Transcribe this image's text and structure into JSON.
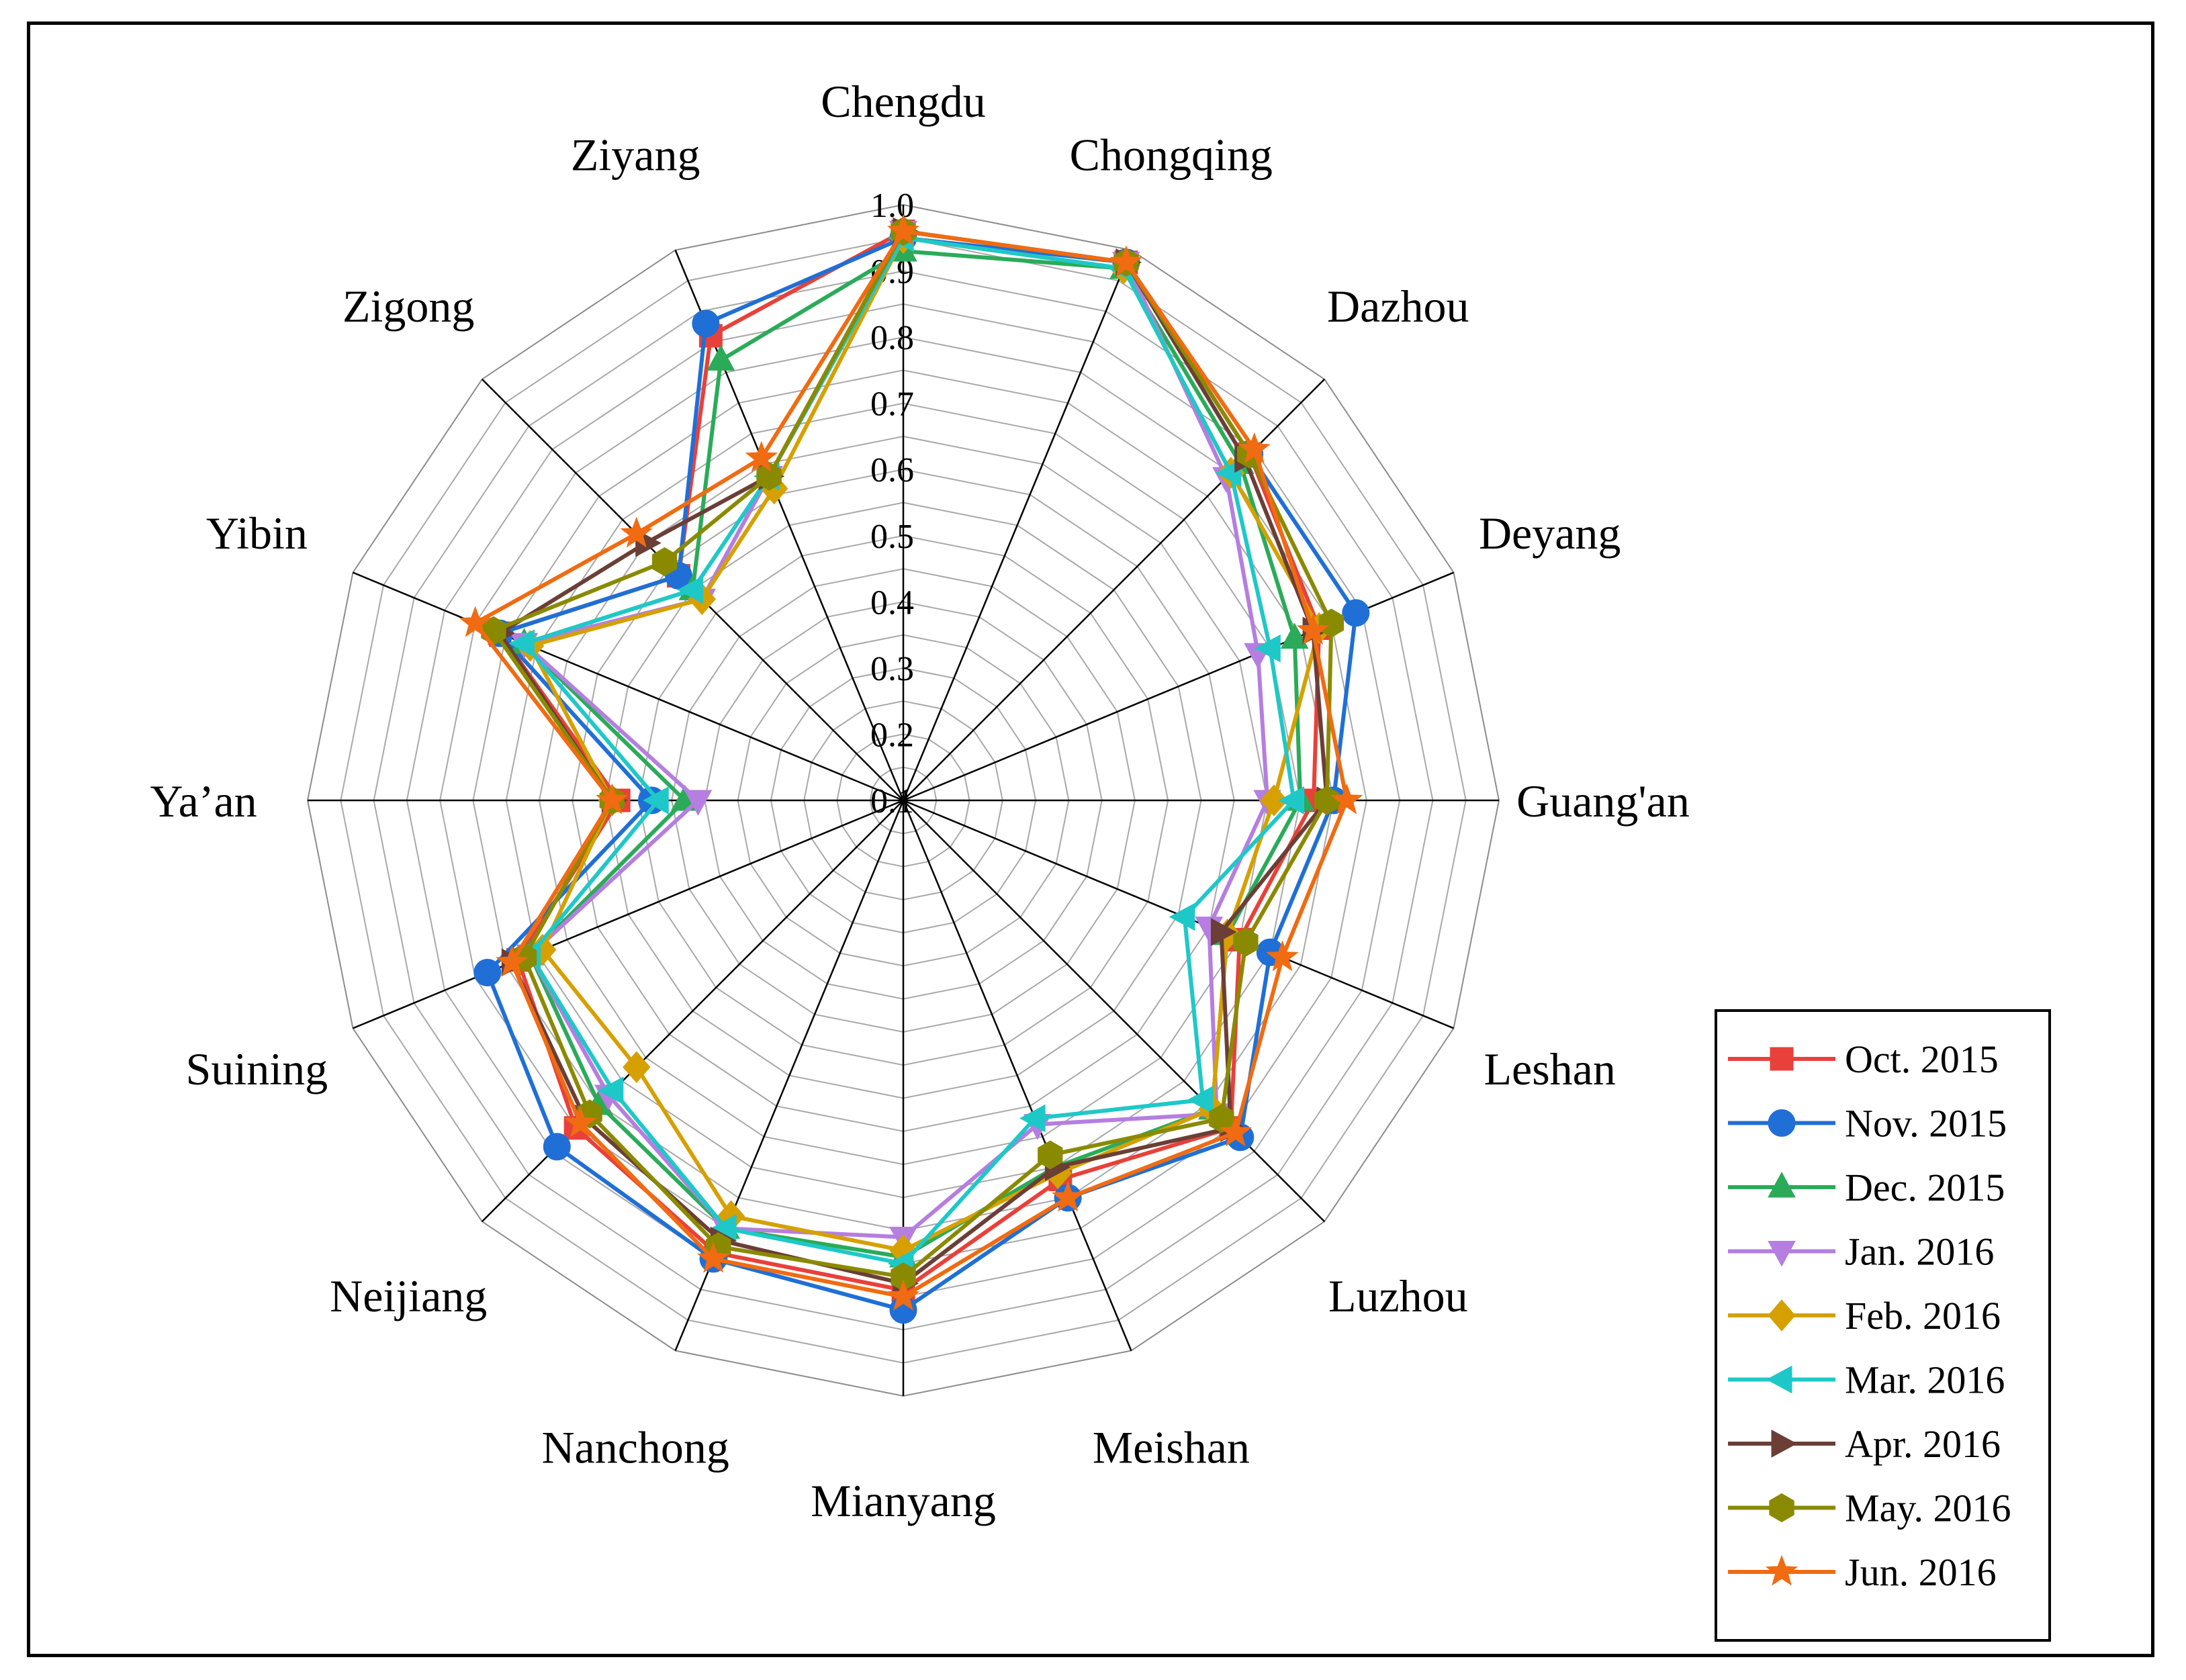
{
  "chart_data": {
    "type": "radar",
    "title": "",
    "categories": [
      "Chengdu",
      "Chongqing",
      "Dazhou",
      "Deyang",
      "Guang'an",
      "Leshan",
      "Luzhou",
      "Meishan",
      "Mianyang",
      "Nanchong",
      "Neijiang",
      "Suining",
      "Ya’an",
      "Yibin",
      "Zigong",
      "Ziyang"
    ],
    "rlim": [
      0.1,
      1.0
    ],
    "ticks": [
      "0.1",
      "0.2",
      "0.3",
      "0.4",
      "0.5",
      "0.6",
      "0.7",
      "0.8",
      "0.9",
      "1.0"
    ],
    "grid": true,
    "legend_position": "bottom-right",
    "series": [
      {
        "name": "Oct. 2015",
        "color": "#e8413a",
        "marker": "square",
        "values": [
          0.96,
          0.98,
          0.84,
          0.78,
          0.72,
          0.65,
          0.8,
          0.72,
          0.84,
          0.84,
          0.8,
          0.73,
          0.53,
          0.76,
          0.58,
          0.86
        ]
      },
      {
        "name": "Nov. 2015",
        "color": "#1f6fd6",
        "marker": "circle",
        "values": [
          0.95,
          0.98,
          0.84,
          0.84,
          0.75,
          0.7,
          0.82,
          0.75,
          0.87,
          0.85,
          0.84,
          0.78,
          0.48,
          0.76,
          0.58,
          0.88
        ]
      },
      {
        "name": "Dec. 2015",
        "color": "#2bab59",
        "marker": "triangle-up",
        "values": [
          0.93,
          0.97,
          0.82,
          0.74,
          0.7,
          0.63,
          0.76,
          0.7,
          0.79,
          0.8,
          0.75,
          0.71,
          0.43,
          0.72,
          0.55,
          0.82
        ]
      },
      {
        "name": "Jan. 2016",
        "color": "#b57ee0",
        "marker": "triangle-down",
        "values": [
          0.96,
          0.98,
          0.79,
          0.68,
          0.65,
          0.6,
          0.77,
          0.63,
          0.76,
          0.8,
          0.73,
          0.71,
          0.41,
          0.72,
          0.53,
          0.63
        ]
      },
      {
        "name": "Feb. 2016",
        "color": "#d6a000",
        "marker": "diamond",
        "values": [
          0.95,
          0.97,
          0.8,
          0.78,
          0.66,
          0.63,
          0.76,
          0.71,
          0.78,
          0.78,
          0.67,
          0.69,
          0.54,
          0.71,
          0.53,
          0.61
        ]
      },
      {
        "name": "Mar. 2016",
        "color": "#1fc8c8",
        "marker": "triangle-left",
        "values": [
          0.95,
          0.97,
          0.8,
          0.7,
          0.69,
          0.56,
          0.74,
          0.62,
          0.8,
          0.8,
          0.72,
          0.71,
          0.47,
          0.72,
          0.55,
          0.63
        ]
      },
      {
        "name": "Apr. 2016",
        "color": "#6b3e36",
        "marker": "triangle-right",
        "values": [
          0.96,
          0.98,
          0.83,
          0.77,
          0.74,
          0.62,
          0.8,
          0.7,
          0.83,
          0.82,
          0.78,
          0.74,
          0.54,
          0.76,
          0.65,
          0.63
        ]
      },
      {
        "name": "May. 2016",
        "color": "#8a8a00",
        "marker": "hexagon",
        "values": [
          0.96,
          0.98,
          0.84,
          0.8,
          0.74,
          0.66,
          0.78,
          0.68,
          0.82,
          0.83,
          0.77,
          0.72,
          0.54,
          0.77,
          0.61,
          0.63
        ]
      },
      {
        "name": "Jun. 2016",
        "color": "#f06b12",
        "marker": "star",
        "values": [
          0.96,
          0.98,
          0.85,
          0.77,
          0.77,
          0.72,
          0.81,
          0.75,
          0.85,
          0.85,
          0.79,
          0.74,
          0.54,
          0.8,
          0.67,
          0.66
        ]
      }
    ]
  }
}
